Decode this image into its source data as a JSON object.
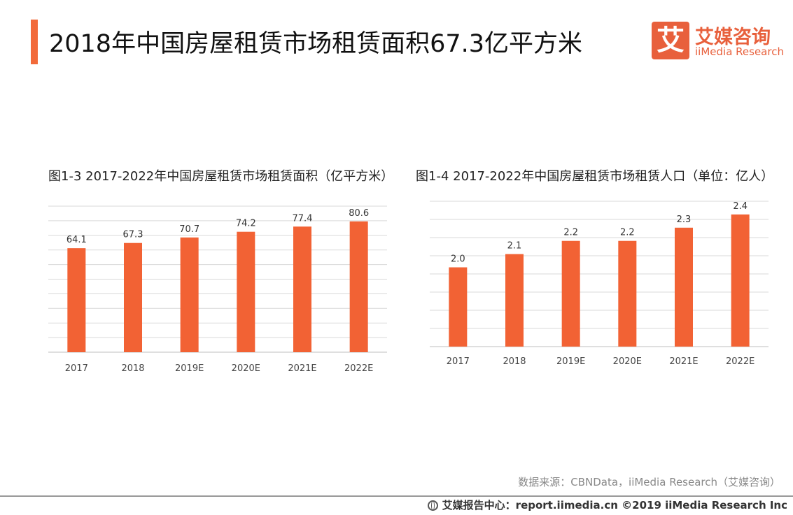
{
  "page": {
    "title": "2018年中国房屋租赁市场租赁面积67.3亿平方米"
  },
  "logo": {
    "mark": "艾",
    "name_cn": "艾媒咨询",
    "name_en": "iiMedia Research"
  },
  "colors": {
    "accent": "#f26a3a",
    "bar": "#f26234",
    "grid": "#d9d9d9"
  },
  "chart_data": [
    {
      "type": "bar",
      "title": "图1-3 2017-2022年中国房屋租赁市场租赁面积（亿平方米）",
      "categories": [
        "2017",
        "2018",
        "2019E",
        "2020E",
        "2021E",
        "2022E"
      ],
      "values": [
        64.1,
        67.3,
        70.7,
        74.2,
        77.4,
        80.6
      ],
      "value_labels": [
        "64.1",
        "67.3",
        "70.7",
        "74.2",
        "77.4",
        "80.6"
      ],
      "xlabel": "",
      "ylabel": "",
      "ylim": [
        0,
        90
      ],
      "grid": true
    },
    {
      "type": "bar",
      "title": "图1-4 2017-2022年中国房屋租赁市场租赁人口（单位：亿人）",
      "categories": [
        "2017",
        "2018",
        "2019E",
        "2020E",
        "2021E",
        "2022E"
      ],
      "values": [
        2.0,
        2.1,
        2.2,
        2.2,
        2.3,
        2.4
      ],
      "value_labels": [
        "2.0",
        "2.1",
        "2.2",
        "2.2",
        "2.3",
        "2.4"
      ],
      "xlabel": "",
      "ylabel": "",
      "ylim": [
        1.4,
        2.5
      ],
      "grid": true
    }
  ],
  "source": "数据来源：CBNData，iiMedia Research（艾媒咨询）",
  "footer": {
    "icon": "globe-icon",
    "text": "艾媒报告中心：report.iimedia.cn ©2019 iiMedia Research Inc"
  }
}
